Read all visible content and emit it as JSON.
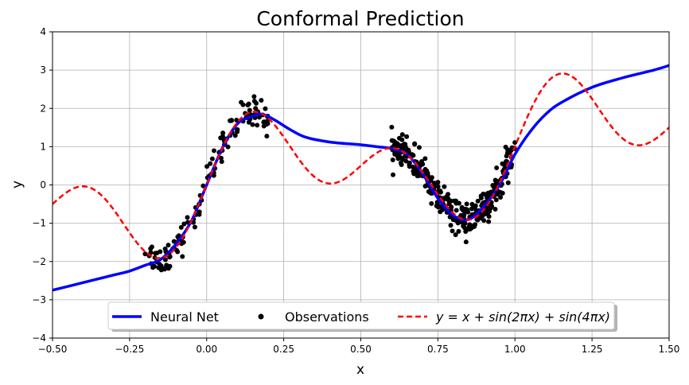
{
  "chart_data": {
    "type": "line",
    "title": "Conformal Prediction",
    "xlabel": "x",
    "ylabel": "y",
    "xlim": [
      -0.5,
      1.5
    ],
    "ylim": [
      -4,
      4
    ],
    "grid": true,
    "legend_position": "bottom-center",
    "x_ticks": [
      -0.5,
      -0.25,
      0.0,
      0.25,
      0.5,
      0.75,
      1.0,
      1.25,
      1.5
    ],
    "x_tick_labels": [
      "−0.50",
      "−0.25",
      "0.00",
      "0.25",
      "0.50",
      "0.75",
      "1.00",
      "1.25",
      "1.50"
    ],
    "y_ticks": [
      -4,
      -3,
      -2,
      -1,
      0,
      1,
      2,
      3,
      4
    ],
    "y_tick_labels": [
      "−4",
      "−3",
      "−2",
      "−1",
      "0",
      "1",
      "2",
      "3",
      "4"
    ],
    "series": [
      {
        "name": "Neural Net",
        "style": "solid",
        "color": "#0000ff",
        "points": [
          [
            -0.5,
            -2.75
          ],
          [
            -0.4,
            -2.55
          ],
          [
            -0.3,
            -2.35
          ],
          [
            -0.25,
            -2.25
          ],
          [
            -0.2,
            -2.1
          ],
          [
            -0.15,
            -1.95
          ],
          [
            -0.1,
            -1.55
          ],
          [
            -0.05,
            -0.95
          ],
          [
            0.0,
            0.0
          ],
          [
            0.05,
            0.95
          ],
          [
            0.1,
            1.6
          ],
          [
            0.15,
            1.8
          ],
          [
            0.18,
            1.85
          ],
          [
            0.22,
            1.7
          ],
          [
            0.27,
            1.45
          ],
          [
            0.32,
            1.25
          ],
          [
            0.4,
            1.12
          ],
          [
            0.5,
            1.05
          ],
          [
            0.55,
            1.0
          ],
          [
            0.6,
            0.95
          ],
          [
            0.65,
            0.8
          ],
          [
            0.7,
            0.3
          ],
          [
            0.75,
            -0.35
          ],
          [
            0.8,
            -0.8
          ],
          [
            0.85,
            -0.9
          ],
          [
            0.9,
            -0.55
          ],
          [
            0.95,
            0.0
          ],
          [
            1.0,
            0.8
          ],
          [
            1.05,
            1.4
          ],
          [
            1.1,
            1.85
          ],
          [
            1.15,
            2.15
          ],
          [
            1.25,
            2.55
          ],
          [
            1.35,
            2.8
          ],
          [
            1.45,
            3.0
          ],
          [
            1.5,
            3.12
          ]
        ]
      },
      {
        "name": "Observations",
        "style": "markers",
        "color": "#000000"
      },
      {
        "name": "y = x + sin(2πx) + sin(4πx)",
        "style": "dashed",
        "color": "#ff0000",
        "function": "x + sin(2*pi*x) + sin(4*pi*x)"
      }
    ],
    "observation_clusters": [
      {
        "x_range": [
          -0.2,
          -0.12
        ],
        "noise": 0.2,
        "count": 28
      },
      {
        "x_range": [
          -0.12,
          0.0
        ],
        "noise": 0.2,
        "count": 32
      },
      {
        "x_range": [
          0.0,
          0.2
        ],
        "noise": 0.22,
        "count": 70
      },
      {
        "x_range": [
          0.6,
          1.0
        ],
        "noise": 0.2,
        "count": 340
      }
    ]
  },
  "legend": {
    "items": [
      {
        "label": "Neural Net"
      },
      {
        "label": "Observations"
      },
      {
        "label": "y = x + sin(2πx) + sin(4πx)"
      }
    ]
  }
}
